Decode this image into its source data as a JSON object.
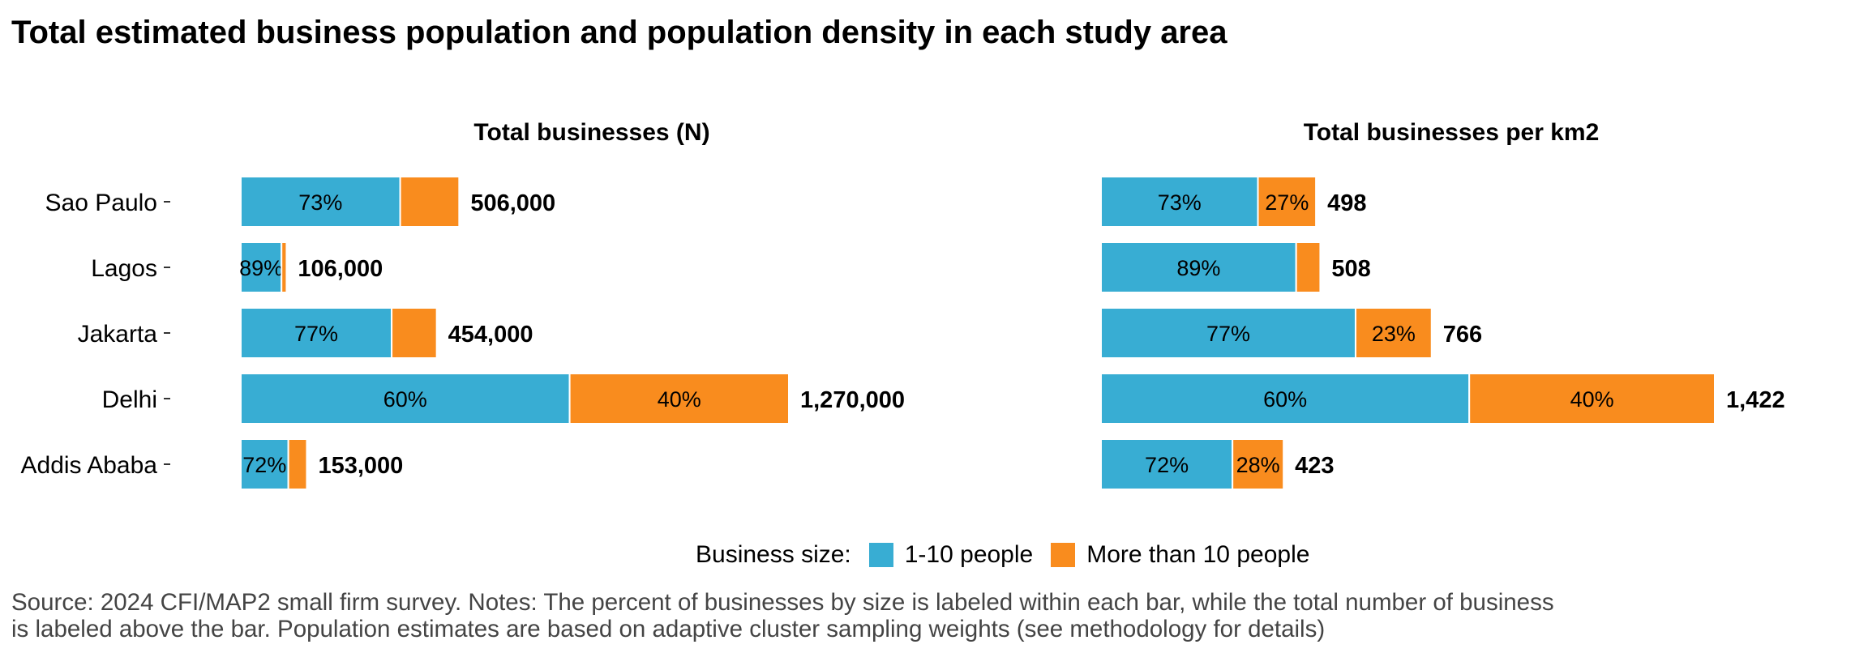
{
  "title": "Total estimated business population and population density in each study area",
  "legend": {
    "title": "Business size:",
    "items": [
      {
        "label": "1-10 people",
        "color": "#38ADD3"
      },
      {
        "label": "More than 10 people",
        "color": "#F98C1E"
      }
    ]
  },
  "source": {
    "line1": "Source: 2024 CFI/MAP2 small firm survey. Notes: The percent of businesses by size is labeled within each bar, while the total number of business",
    "line2": "is labeled above the bar. Population estimates are based on adaptive cluster sampling weights (see methodology for details)"
  },
  "chart_data": [
    {
      "type": "bar",
      "orientation": "horizontal",
      "stacked": true,
      "title": "Total businesses (N)",
      "categories": [
        "Sao Paulo",
        "Lagos",
        "Jakarta",
        "Delhi",
        "Addis Ababa"
      ],
      "totals": [
        506000,
        106000,
        454000,
        1270000,
        153000
      ],
      "total_labels": [
        "506,000",
        "106,000",
        "454,000",
        "1,270,000",
        "153,000"
      ],
      "series": [
        {
          "name": "1-10 people",
          "color": "#38ADD3",
          "percent_labels": [
            "73%",
            "89%",
            "77%",
            "60%",
            "72%"
          ],
          "values": [
            369380,
            94340,
            349580,
            762000,
            110160
          ]
        },
        {
          "name": "More than 10 people",
          "color": "#F98C1E",
          "percent_labels": [
            "",
            "",
            "",
            "40%",
            ""
          ],
          "values": [
            136620,
            11660,
            104420,
            508000,
            42840
          ]
        }
      ],
      "xlim": [
        0,
        1270000
      ],
      "grid": false
    },
    {
      "type": "bar",
      "orientation": "horizontal",
      "stacked": true,
      "title": "Total businesses per km2",
      "categories": [
        "Sao Paulo",
        "Lagos",
        "Jakarta",
        "Delhi",
        "Addis Ababa"
      ],
      "totals": [
        498,
        508,
        766,
        1422,
        423
      ],
      "total_labels": [
        "498",
        "508",
        "766",
        "1,422",
        "423"
      ],
      "series": [
        {
          "name": "1-10 people",
          "color": "#38ADD3",
          "percent_labels": [
            "73%",
            "89%",
            "77%",
            "60%",
            "72%"
          ],
          "values": [
            363.5,
            452.1,
            589.8,
            853.2,
            304.6
          ]
        },
        {
          "name": "More than 10 people",
          "color": "#F98C1E",
          "percent_labels": [
            "27%",
            "",
            "23%",
            "40%",
            "28%"
          ],
          "values": [
            134.5,
            55.9,
            176.2,
            568.8,
            118.4
          ]
        }
      ],
      "xlim": [
        0,
        1422
      ],
      "grid": false
    }
  ]
}
